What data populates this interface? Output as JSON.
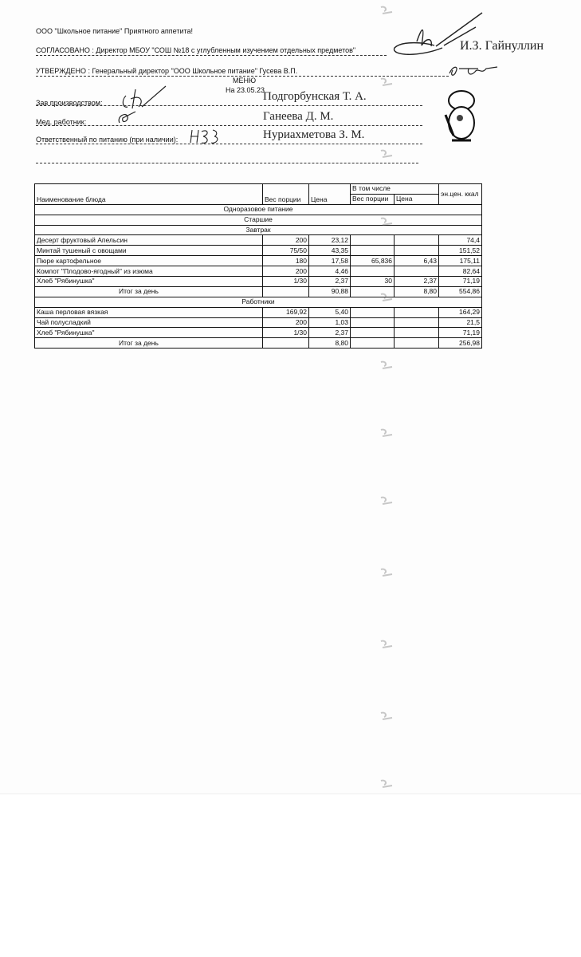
{
  "header": {
    "company_line": "ООО \"Школьное питание\" Приятного аппетита!",
    "agreed": "СОГЛАСОВАНО : Директор МБОУ \"СОШ №18 с углубленным изучением отдельных предметов\"",
    "agreed_name": "И.З. Гайнуллин",
    "approved": "УТВЕРЖДЕНО : Генеральный директор \"ООО Школьное питание\" Гусева В.П.",
    "title": "МЕНЮ",
    "date": "На 23.05.23",
    "roles": [
      {
        "label": "Зав производством:",
        "name": "Подгорбунская Т. А."
      },
      {
        "label": "Мед. работник:",
        "name": "Ганеева Д. М."
      },
      {
        "label": "Ответственный по питанию (при наличии):",
        "name": "Нуриахметова З. М."
      }
    ]
  },
  "table": {
    "headers": {
      "name": "Наименование блюда",
      "weight": "Вес порции",
      "price": "Цена",
      "including": "В том числе",
      "sub_weight": "Вес порции",
      "sub_price": "Цена",
      "kcal": "эн.цен. ккал"
    },
    "section": "Одноразовое питание",
    "group": "Старшие",
    "meal": "Завтрак",
    "breakfast_rows": [
      {
        "name": "Десерт фруктовый Апельсин",
        "weight": "200",
        "price": "23,12",
        "sub_weight": "",
        "sub_price": "",
        "kcal": "74,4"
      },
      {
        "name": "Минтай тушеный с овощами",
        "weight": "75/50",
        "price": "43,35",
        "sub_weight": "",
        "sub_price": "",
        "kcal": "151,52"
      },
      {
        "name": "Пюре картофельное",
        "weight": "180",
        "price": "17,58",
        "sub_weight": "65,836",
        "sub_price": "6,43",
        "kcal": "175,11"
      },
      {
        "name": "Компот \"Плодово-ягодный\" из изюма",
        "weight": "200",
        "price": "4,46",
        "sub_weight": "",
        "sub_price": "",
        "kcal": "82,64"
      },
      {
        "name": "Хлеб \"Рябинушка\"",
        "weight": "1/30",
        "price": "2,37",
        "sub_weight": "30",
        "sub_price": "2,37",
        "kcal": "71,19"
      }
    ],
    "breakfast_total": {
      "name": "Итог за день",
      "weight": "",
      "price": "90,88",
      "sub_weight": "",
      "sub_price": "8,80",
      "kcal": "554,86"
    },
    "workers": "Работники",
    "workers_rows": [
      {
        "name": "Каша перловая вязкая",
        "weight": "169,92",
        "price": "5,40",
        "sub_weight": "",
        "sub_price": "",
        "kcal": "164,29"
      },
      {
        "name": "Чай полусладкий",
        "weight": "200",
        "price": "1,03",
        "sub_weight": "",
        "sub_price": "",
        "kcal": "21,5"
      },
      {
        "name": "Хлеб \"Рябинушка\"",
        "weight": "1/30",
        "price": "2,37",
        "sub_weight": "",
        "sub_price": "",
        "kcal": "71,19"
      }
    ],
    "workers_total": {
      "name": "Итог за день",
      "weight": "",
      "price": "8,80",
      "sub_weight": "",
      "sub_price": "",
      "kcal": "256,98"
    }
  }
}
